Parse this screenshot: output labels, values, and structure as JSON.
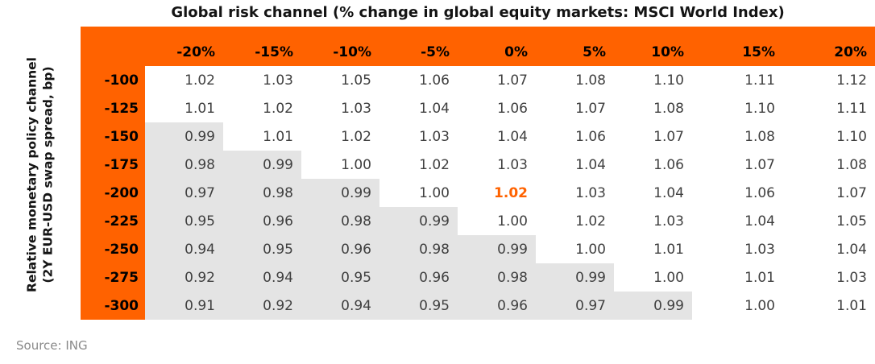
{
  "colors": {
    "accent": "#FF6200",
    "shaded_cell": "#E4E4E4",
    "header_text": "#000000",
    "cell_text": "#404040",
    "source_text": "#8A8A8A"
  },
  "source": "Source: ING",
  "chart_data": {
    "type": "table",
    "title": "Global risk channel (% change in global equity markets: MSCI World Index)",
    "ylabel_line1": "Relative monetary policy channel",
    "ylabel_line2": "(2Y EUR-USD swap spread, bp)",
    "columns": [
      "-20%",
      "-15%",
      "-10%",
      "-5%",
      "0%",
      "5%",
      "10%",
      "15%",
      "20%"
    ],
    "rows": [
      "-100",
      "-125",
      "-150",
      "-175",
      "-200",
      "-225",
      "-250",
      "-275",
      "-300"
    ],
    "values": [
      [
        1.02,
        1.03,
        1.05,
        1.06,
        1.07,
        1.08,
        1.1,
        1.11,
        1.12
      ],
      [
        1.01,
        1.02,
        1.03,
        1.04,
        1.06,
        1.07,
        1.08,
        1.1,
        1.11
      ],
      [
        0.99,
        1.01,
        1.02,
        1.03,
        1.04,
        1.06,
        1.07,
        1.08,
        1.1
      ],
      [
        0.98,
        0.99,
        1.0,
        1.02,
        1.03,
        1.04,
        1.06,
        1.07,
        1.08
      ],
      [
        0.97,
        0.98,
        0.99,
        1.0,
        1.02,
        1.03,
        1.04,
        1.06,
        1.07
      ],
      [
        0.95,
        0.96,
        0.98,
        0.99,
        1.0,
        1.02,
        1.03,
        1.04,
        1.05
      ],
      [
        0.94,
        0.95,
        0.96,
        0.98,
        0.99,
        1.0,
        1.01,
        1.03,
        1.04
      ],
      [
        0.92,
        0.94,
        0.95,
        0.96,
        0.98,
        0.99,
        1.0,
        1.01,
        1.03
      ],
      [
        0.91,
        0.92,
        0.94,
        0.95,
        0.96,
        0.97,
        0.99,
        1.0,
        1.01
      ]
    ],
    "value_decimals": 2,
    "shade_below": 1.0,
    "shading_rule": "cells with value below 1.00 have gray background",
    "highlight_cell": {
      "row": "-200",
      "column": "0%",
      "row_index": 4,
      "col_index": 4,
      "value": 1.02
    },
    "grid": false,
    "legend_position": "none"
  }
}
